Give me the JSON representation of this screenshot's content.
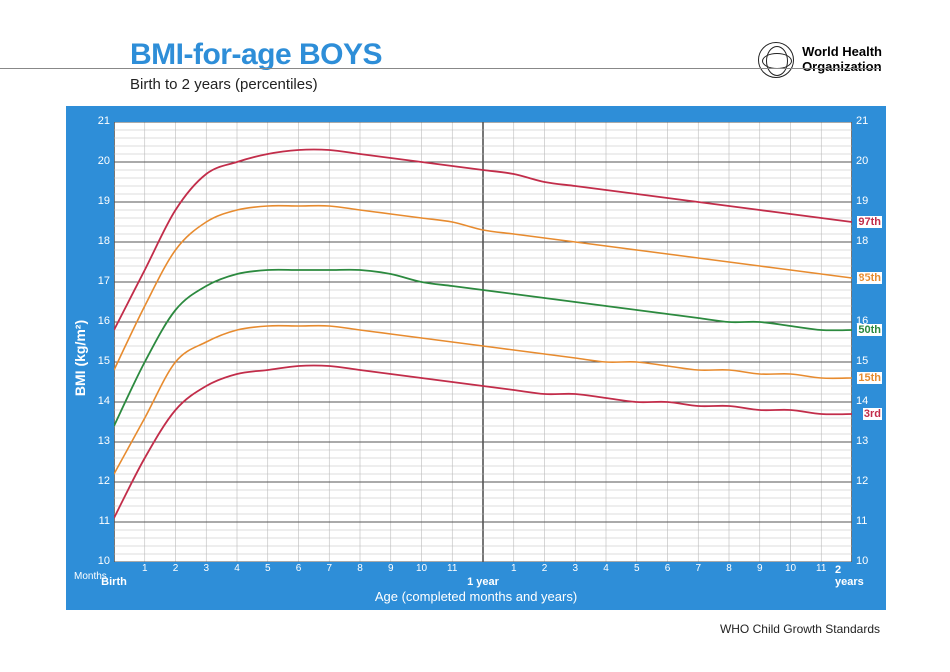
{
  "header": {
    "title": "BMI-for-age BOYS",
    "subtitle": "Birth to 2 years (percentiles)",
    "org_line1": "World Health",
    "org_line2": "Organization"
  },
  "footer": {
    "text": "WHO Child Growth Standards"
  },
  "chart": {
    "type": "line",
    "background_color": "#2e8ed8",
    "plot_bg": "#ffffff",
    "grid_major_color": "#555555",
    "grid_minor_color": "#bbbbbb",
    "ylabel": "BMI (kg/m²)",
    "xlabel": "Age (completed months and years)",
    "months_label": "Months",
    "ymin": 10,
    "ymax": 21,
    "ytick_step": 1,
    "xmin": 0,
    "xmax": 24,
    "x_minor_ticks": [
      1,
      2,
      3,
      4,
      5,
      6,
      7,
      8,
      9,
      10,
      11,
      13,
      14,
      15,
      16,
      17,
      18,
      19,
      20,
      21,
      22,
      23
    ],
    "x_minor_labels": [
      "1",
      "2",
      "3",
      "4",
      "5",
      "6",
      "7",
      "8",
      "9",
      "10",
      "11",
      "1",
      "2",
      "3",
      "4",
      "5",
      "6",
      "7",
      "8",
      "9",
      "10",
      "11"
    ],
    "x_major_ticks": [
      0,
      12,
      24
    ],
    "x_major_labels": [
      "Birth",
      "1 year",
      "2 years"
    ],
    "series": [
      {
        "name": "97th",
        "label": "97th",
        "color": "#c22d4a",
        "width": 1.8,
        "values": [
          15.8,
          17.3,
          18.8,
          19.7,
          20.0,
          20.2,
          20.3,
          20.3,
          20.2,
          20.1,
          20.0,
          19.9,
          19.8,
          19.7,
          19.5,
          19.4,
          19.3,
          19.2,
          19.1,
          19.0,
          18.9,
          18.8,
          18.7,
          18.6,
          18.5
        ]
      },
      {
        "name": "85th",
        "label": "85th",
        "color": "#e78b2f",
        "width": 1.6,
        "values": [
          14.8,
          16.4,
          17.8,
          18.5,
          18.8,
          18.9,
          18.9,
          18.9,
          18.8,
          18.7,
          18.6,
          18.5,
          18.3,
          18.2,
          18.1,
          18.0,
          17.9,
          17.8,
          17.7,
          17.6,
          17.5,
          17.4,
          17.3,
          17.2,
          17.1
        ]
      },
      {
        "name": "50th",
        "label": "50th",
        "color": "#2c8a3f",
        "width": 1.8,
        "values": [
          13.4,
          15.0,
          16.3,
          16.9,
          17.2,
          17.3,
          17.3,
          17.3,
          17.3,
          17.2,
          17.0,
          16.9,
          16.8,
          16.7,
          16.6,
          16.5,
          16.4,
          16.3,
          16.2,
          16.1,
          16.0,
          16.0,
          15.9,
          15.8,
          15.8
        ]
      },
      {
        "name": "15th",
        "label": "15th",
        "color": "#e78b2f",
        "width": 1.6,
        "values": [
          12.2,
          13.6,
          15.0,
          15.5,
          15.8,
          15.9,
          15.9,
          15.9,
          15.8,
          15.7,
          15.6,
          15.5,
          15.4,
          15.3,
          15.2,
          15.1,
          15.0,
          15.0,
          14.9,
          14.8,
          14.8,
          14.7,
          14.7,
          14.6,
          14.6
        ]
      },
      {
        "name": "3rd",
        "label": "3rd",
        "color": "#c22d4a",
        "width": 1.8,
        "values": [
          11.1,
          12.6,
          13.8,
          14.4,
          14.7,
          14.8,
          14.9,
          14.9,
          14.8,
          14.7,
          14.6,
          14.5,
          14.4,
          14.3,
          14.2,
          14.2,
          14.1,
          14.0,
          14.0,
          13.9,
          13.9,
          13.8,
          13.8,
          13.7,
          13.7
        ]
      }
    ],
    "label_fontsize": 13,
    "tick_fontsize": 11,
    "tick_color": "#ffffff"
  }
}
